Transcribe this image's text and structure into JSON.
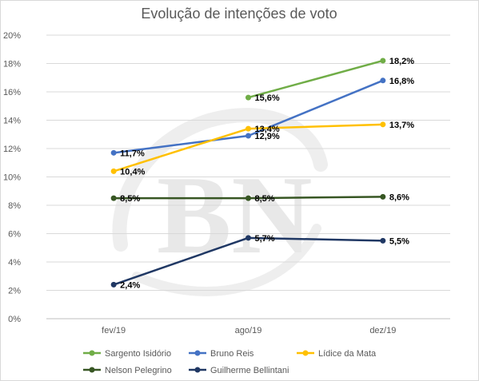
{
  "chart_data": {
    "type": "line",
    "title": "Evolução de intenções de voto",
    "xlabel": "",
    "ylabel": "",
    "categories": [
      "fev/19",
      "ago/19",
      "dez/19"
    ],
    "ylim": [
      0,
      20
    ],
    "y_ticks": [
      0,
      2,
      4,
      6,
      8,
      10,
      12,
      14,
      16,
      18,
      20
    ],
    "y_tick_labels": [
      "0%",
      "2%",
      "4%",
      "6%",
      "8%",
      "10%",
      "12%",
      "14%",
      "16%",
      "18%",
      "20%"
    ],
    "grid": true,
    "legend_position": "bottom",
    "watermark": "BN",
    "series": [
      {
        "name": "Sargento Isidório",
        "color": "#70ad47",
        "values": [
          null,
          15.6,
          18.2
        ],
        "labels": [
          "",
          "15,6%",
          "18,2%"
        ]
      },
      {
        "name": "Bruno Reis",
        "color": "#4472c4",
        "values": [
          11.7,
          12.9,
          16.8
        ],
        "labels": [
          "11,7%",
          "12,9%",
          "16,8%"
        ]
      },
      {
        "name": "Lídice da Mata",
        "color": "#ffc000",
        "values": [
          10.4,
          13.4,
          13.7
        ],
        "labels": [
          "10,4%",
          "13,4%",
          "13,7%"
        ]
      },
      {
        "name": "Nelson Pelegrino",
        "color": "#375623",
        "values": [
          8.5,
          8.5,
          8.6
        ],
        "labels": [
          "8,5%",
          "8,5%",
          "8,6%"
        ]
      },
      {
        "name": "Guilherme Bellintani",
        "color": "#203864",
        "values": [
          2.4,
          5.7,
          5.5
        ],
        "labels": [
          "2,4%",
          "5,7%",
          "5,5%"
        ]
      }
    ]
  }
}
